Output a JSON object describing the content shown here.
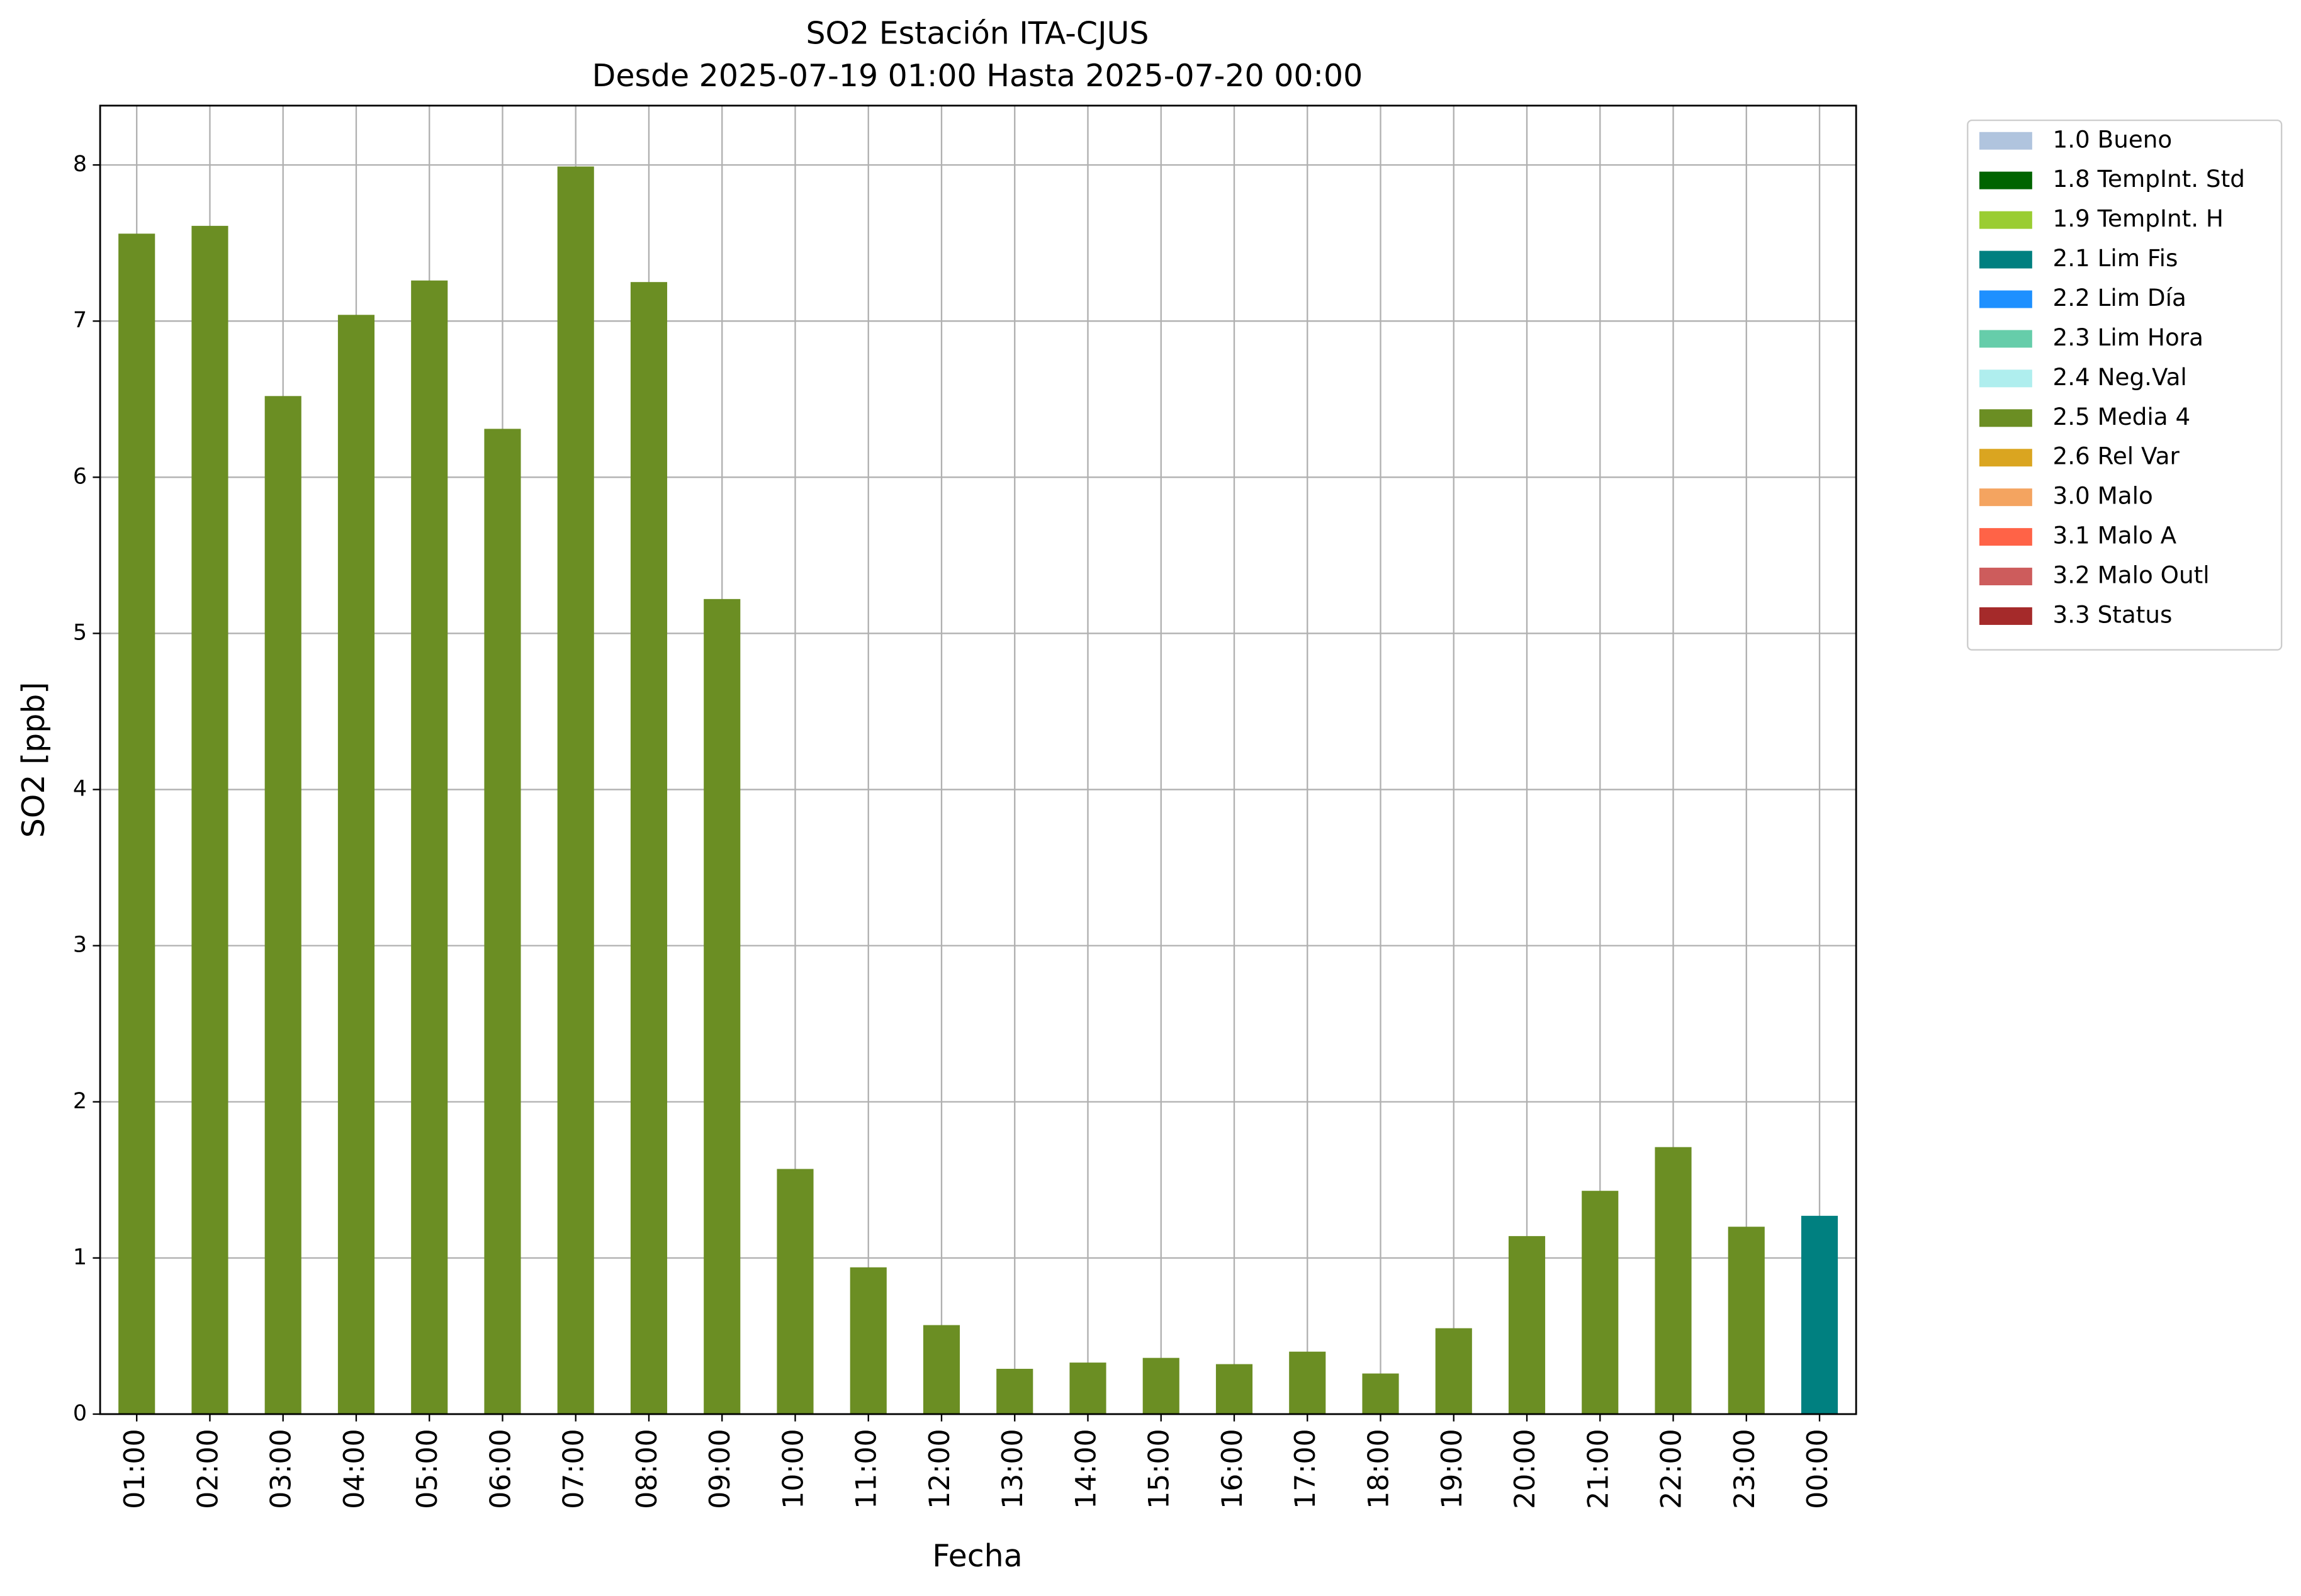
{
  "chart_data": {
    "type": "bar",
    "stacked": true,
    "title": "SO2 Estación ITA-CJUS",
    "subtitle": "Desde 2025-07-19 01:00 Hasta 2025-07-20 00:00",
    "x_label": "Fecha",
    "y_label": "SO2 [ppb]",
    "categories": [
      "01:00",
      "02:00",
      "03:00",
      "04:00",
      "05:00",
      "06:00",
      "07:00",
      "08:00",
      "09:00",
      "10:00",
      "11:00",
      "12:00",
      "13:00",
      "14:00",
      "15:00",
      "16:00",
      "17:00",
      "18:00",
      "19:00",
      "20:00",
      "21:00",
      "22:00",
      "23:00",
      "00:00"
    ],
    "ylim": [
      0,
      8.38
    ],
    "yticks": [
      0,
      1,
      2,
      3,
      4,
      5,
      6,
      7,
      8
    ],
    "grid": true,
    "legend": "outside-upper-right",
    "series": [
      {
        "name": "1.0 Bueno",
        "color": "#b0c4de",
        "values": [
          null,
          null,
          null,
          null,
          null,
          null,
          null,
          null,
          null,
          null,
          null,
          null,
          null,
          null,
          null,
          null,
          null,
          null,
          null,
          null,
          null,
          null,
          null,
          null
        ]
      },
      {
        "name": "1.8 TempInt. Std",
        "color": "#006400",
        "values": [
          null,
          null,
          null,
          null,
          null,
          null,
          null,
          null,
          null,
          null,
          null,
          null,
          null,
          null,
          null,
          null,
          null,
          null,
          null,
          null,
          null,
          null,
          null,
          null
        ]
      },
      {
        "name": "1.9 TempInt. H",
        "color": "#9acd32",
        "values": [
          null,
          null,
          null,
          null,
          null,
          null,
          null,
          null,
          null,
          null,
          null,
          null,
          null,
          null,
          null,
          null,
          null,
          null,
          null,
          null,
          null,
          null,
          null,
          null
        ]
      },
      {
        "name": "2.1 Lim Fis",
        "color": "#008080",
        "values": [
          null,
          null,
          null,
          null,
          null,
          null,
          null,
          null,
          null,
          null,
          null,
          null,
          null,
          null,
          null,
          null,
          null,
          null,
          null,
          null,
          null,
          null,
          null,
          1.27
        ]
      },
      {
        "name": "2.2 Lim Día",
        "color": "#1e90ff",
        "values": [
          null,
          null,
          null,
          null,
          null,
          null,
          null,
          null,
          null,
          null,
          null,
          null,
          null,
          null,
          null,
          null,
          null,
          null,
          null,
          null,
          null,
          null,
          null,
          null
        ]
      },
      {
        "name": "2.3 Lim Hora",
        "color": "#66cdaa",
        "values": [
          null,
          null,
          null,
          null,
          null,
          null,
          null,
          null,
          null,
          null,
          null,
          null,
          null,
          null,
          null,
          null,
          null,
          null,
          null,
          null,
          null,
          null,
          null,
          null
        ]
      },
      {
        "name": "2.4 Neg.Val",
        "color": "#afeeee",
        "values": [
          null,
          null,
          null,
          null,
          null,
          null,
          null,
          null,
          null,
          null,
          null,
          null,
          null,
          null,
          null,
          null,
          null,
          null,
          null,
          null,
          null,
          null,
          null,
          null
        ]
      },
      {
        "name": "2.5 Media 4",
        "color": "#6b8e23",
        "values": [
          7.56,
          7.61,
          6.52,
          7.04,
          7.26,
          6.31,
          7.99,
          7.25,
          5.22,
          1.57,
          0.94,
          0.57,
          0.29,
          0.33,
          0.36,
          0.32,
          0.4,
          0.26,
          0.55,
          1.14,
          1.43,
          1.71,
          1.2,
          null
        ]
      },
      {
        "name": "2.6 Rel Var",
        "color": "#daa520",
        "values": [
          null,
          null,
          null,
          null,
          null,
          null,
          null,
          null,
          null,
          null,
          null,
          null,
          null,
          null,
          null,
          null,
          null,
          null,
          null,
          null,
          null,
          null,
          null,
          null
        ]
      },
      {
        "name": "3.0 Malo",
        "color": "#f4a460",
        "values": [
          null,
          null,
          null,
          null,
          null,
          null,
          null,
          null,
          null,
          null,
          null,
          null,
          null,
          null,
          null,
          null,
          null,
          null,
          null,
          null,
          null,
          null,
          null,
          null
        ]
      },
      {
        "name": "3.1 Malo A",
        "color": "#ff6347",
        "values": [
          null,
          null,
          null,
          null,
          null,
          null,
          null,
          null,
          null,
          null,
          null,
          null,
          null,
          null,
          null,
          null,
          null,
          null,
          null,
          null,
          null,
          null,
          null,
          null
        ]
      },
      {
        "name": "3.2 Malo Outl",
        "color": "#cd5c5c",
        "values": [
          null,
          null,
          null,
          null,
          null,
          null,
          null,
          null,
          null,
          null,
          null,
          null,
          null,
          null,
          null,
          null,
          null,
          null,
          null,
          null,
          null,
          null,
          null,
          null
        ]
      },
      {
        "name": "3.3 Status",
        "color": "#a52a2a",
        "values": [
          null,
          null,
          null,
          null,
          null,
          null,
          null,
          null,
          null,
          null,
          null,
          null,
          null,
          null,
          null,
          null,
          null,
          null,
          null,
          null,
          null,
          null,
          null,
          null
        ]
      }
    ]
  }
}
